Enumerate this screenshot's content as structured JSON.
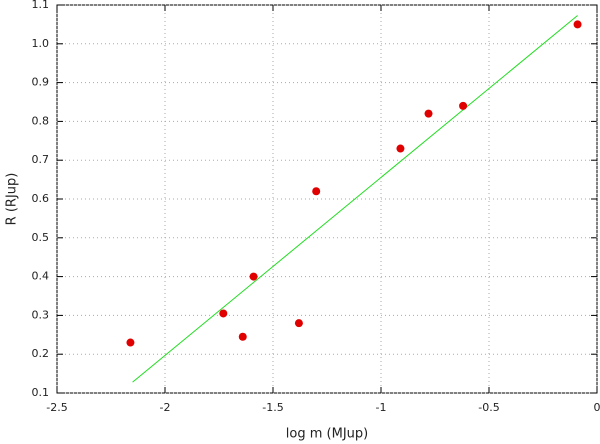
{
  "chart_data": {
    "type": "scatter",
    "xlabel": "log m (MJup)",
    "ylabel": "R (RJup)",
    "x": [
      -2.16,
      -1.73,
      -1.64,
      -1.59,
      -1.38,
      -1.3,
      -0.91,
      -0.78,
      -0.62,
      -0.09
    ],
    "values": [
      0.23,
      0.305,
      0.245,
      0.4,
      0.28,
      0.62,
      0.73,
      0.82,
      0.84,
      1.05
    ],
    "color": "#e00000",
    "fit": {
      "x": [
        -2.15,
        -0.09
      ],
      "values": [
        0.128,
        1.073
      ],
      "color": "#22dd22"
    },
    "xlim": [
      -2.5,
      0
    ],
    "xticks": [
      -2.5,
      -2,
      -1.5,
      -1,
      -0.5,
      0
    ],
    "ylim": [
      0.1,
      1.1
    ],
    "yticks": [
      0.1,
      0.2,
      0.3,
      0.4,
      0.5,
      0.6,
      0.7,
      0.8,
      0.9,
      {
        "value": 1,
        "label": "1.0"
      },
      1.1
    ],
    "grid": true
  }
}
